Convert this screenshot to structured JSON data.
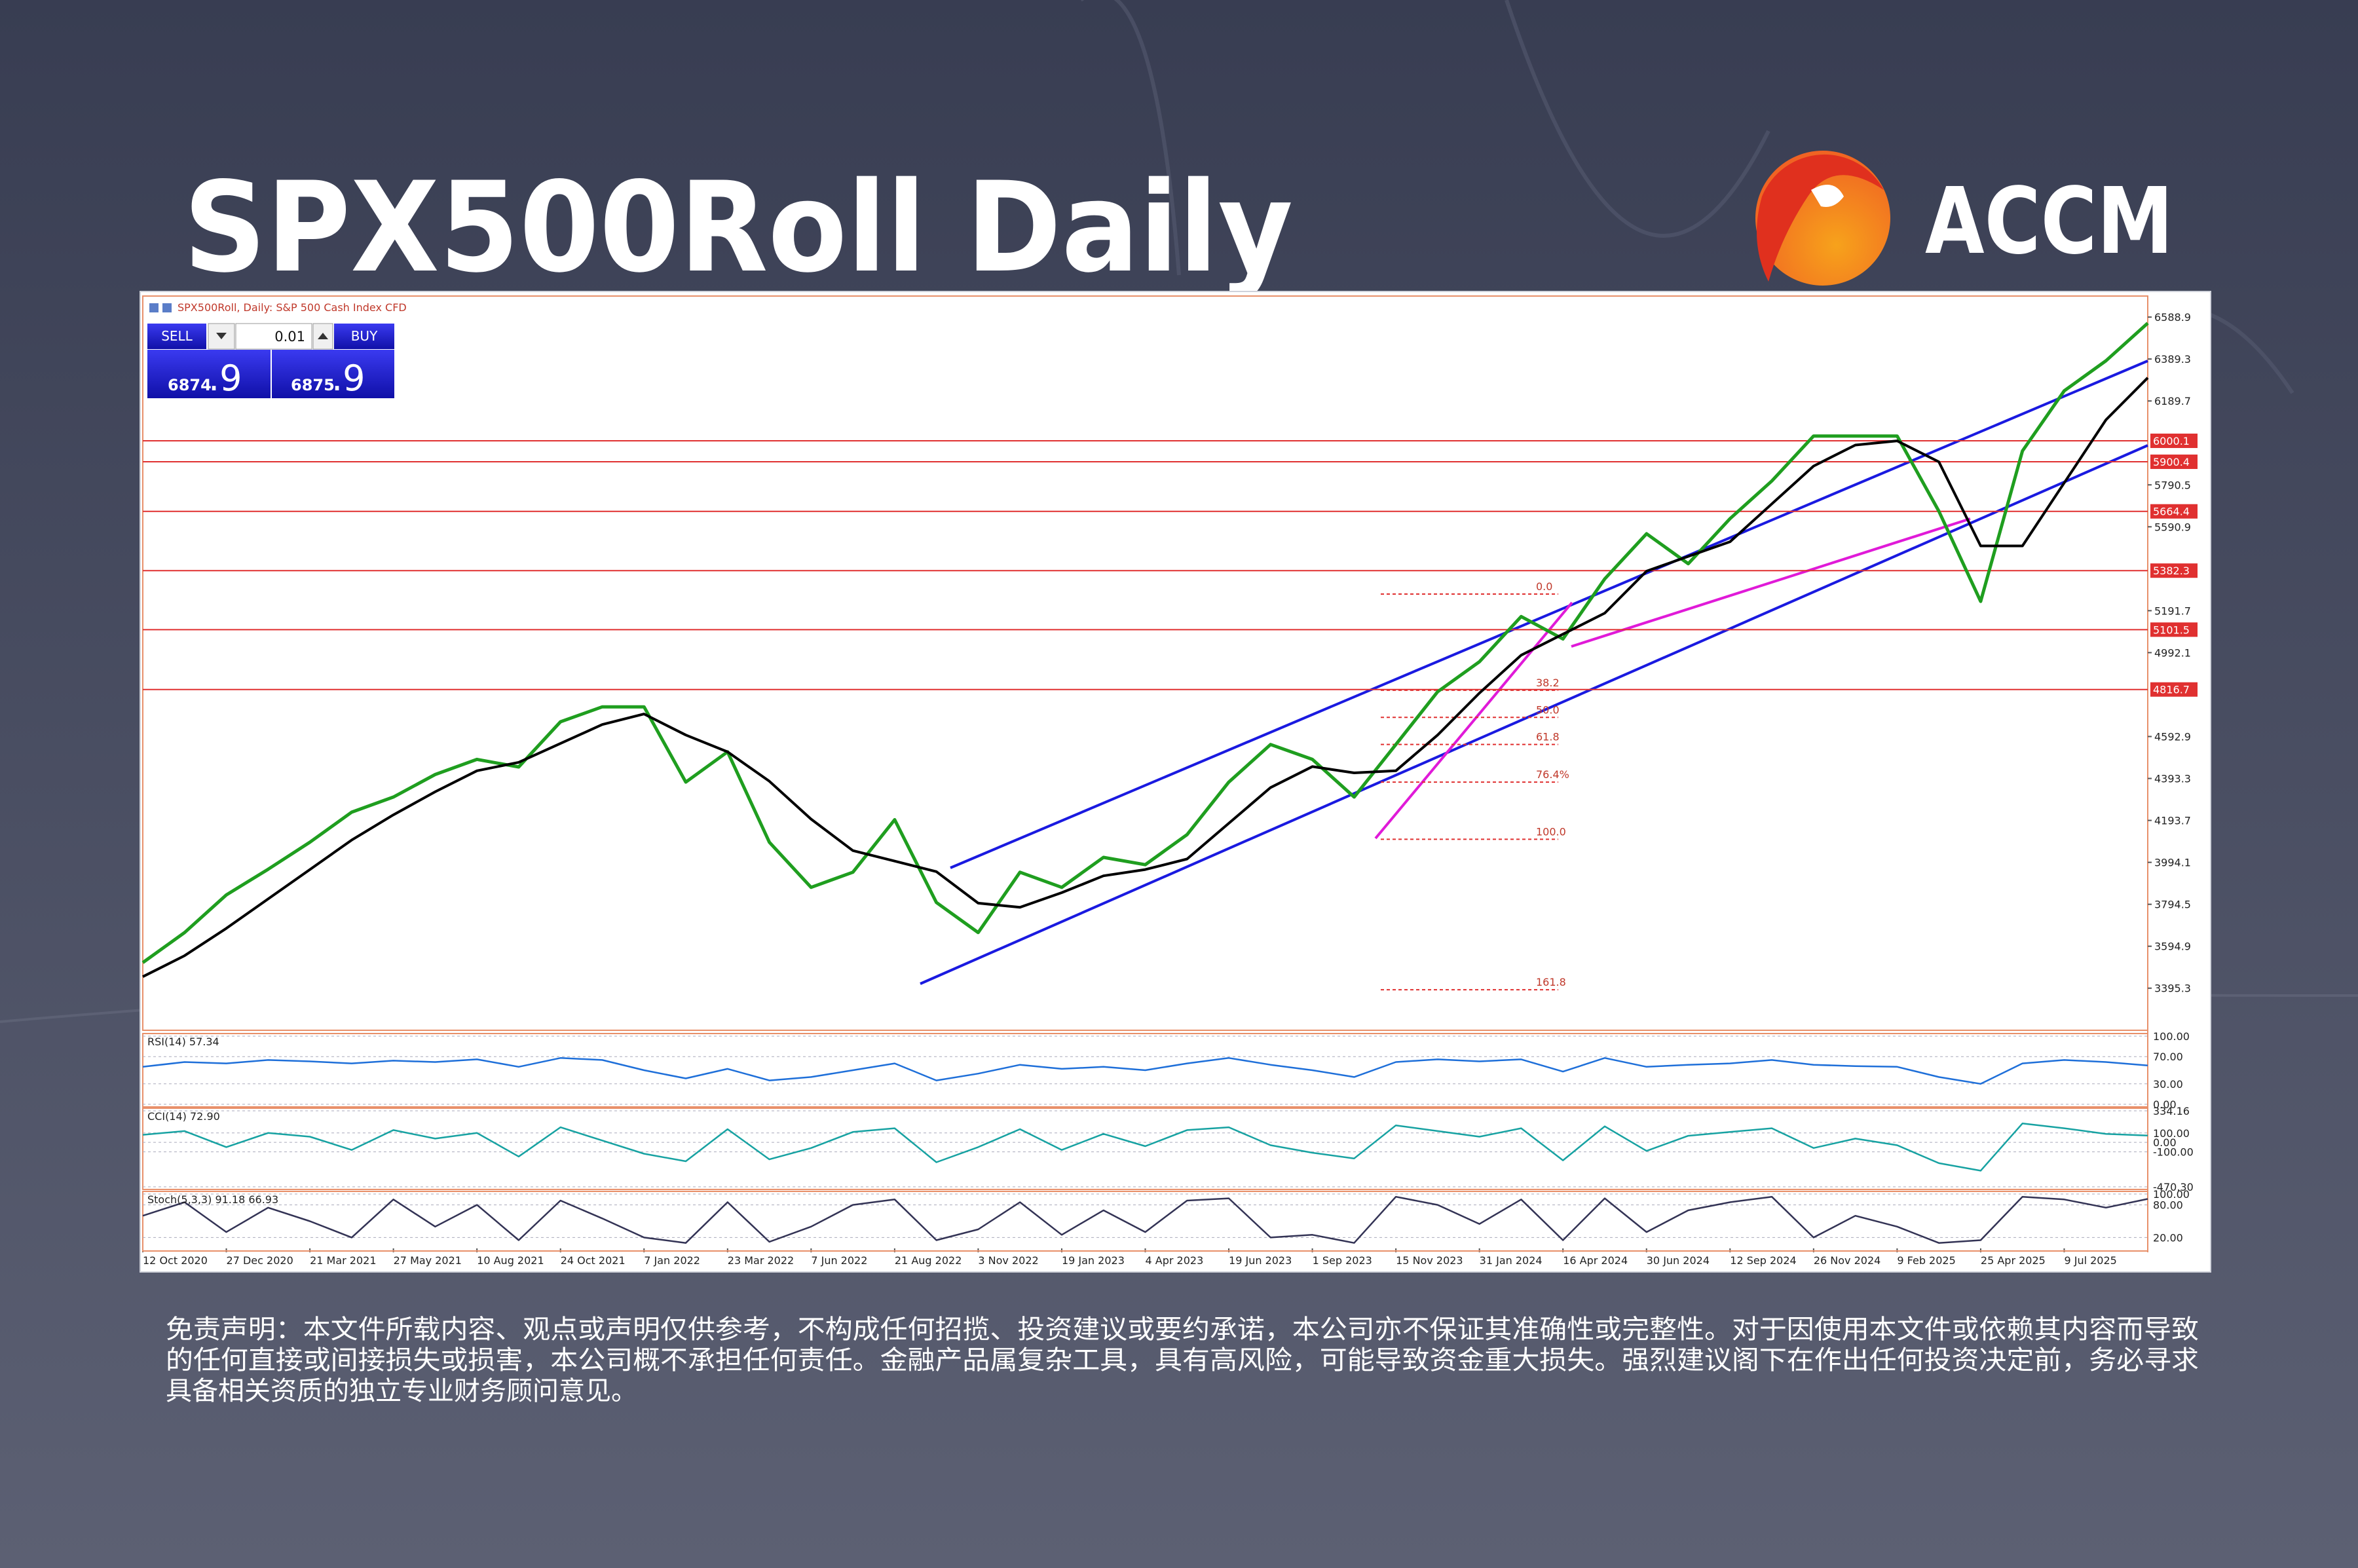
{
  "header": {
    "title": "SPX500Roll Daily",
    "brand": "ACCM"
  },
  "chart_data": {
    "type": "line",
    "symbol_label": "SPX500Roll, Daily:  S&P 500 Cash Index CFD",
    "trade_panel": {
      "sell": "SELL",
      "lot": "0.01",
      "buy": "BUY",
      "bid_big": "6874",
      "bid_small": ".9",
      "ask_big": "6875",
      "ask_small": ".9"
    },
    "categories": [
      "12 Oct 2020",
      null,
      "27 Dec 2020",
      null,
      "21 Mar 2021",
      null,
      "27 May 2021",
      null,
      "10 Aug 2021",
      null,
      "24 Oct 2021",
      null,
      "7 Jan 2022",
      null,
      "23 Mar 2022",
      null,
      "7 Jun 2022",
      null,
      "21 Aug 2022",
      null,
      "3 Nov 2022",
      null,
      "19 Jan 2023",
      null,
      "4 Apr 2023",
      null,
      "19 Jun 2023",
      null,
      "1 Sep 2023",
      null,
      "15 Nov 2023",
      null,
      "31 Jan 2024",
      null,
      "16 Apr 2024",
      null,
      "30 Jun 2024",
      null,
      "12 Sep 2024",
      null,
      "26 Nov 2024",
      null,
      "9 Feb 2025",
      null,
      "25 Apr 2025",
      null,
      "9 Jul 2025",
      null,
      null
    ],
    "series": [
      {
        "color": "#1f9e1f",
        "values": [
          3517,
          3660,
          3839,
          3961,
          4090,
          4233,
          4305,
          4412,
          4484,
          4448,
          4663,
          4734,
          4734,
          4376,
          4520,
          4090,
          3875,
          3947,
          4197,
          3803,
          3660,
          3947,
          3875,
          4018,
          3983,
          4126,
          4376,
          4555,
          4484,
          4305,
          4555,
          4806,
          4949,
          5164,
          5057,
          5343,
          5558,
          5415,
          5630,
          5809,
          6023,
          6023,
          6023,
          5665,
          5236,
          5952,
          6238,
          6381,
          6560
        ]
      },
      {
        "color": "#000000",
        "values": [
          3450,
          3550,
          3680,
          3820,
          3960,
          4100,
          4220,
          4330,
          4430,
          4470,
          4560,
          4650,
          4700,
          4600,
          4520,
          4380,
          4200,
          4050,
          4000,
          3950,
          3800,
          3780,
          3850,
          3930,
          3960,
          4010,
          4180,
          4350,
          4450,
          4420,
          4430,
          4600,
          4800,
          4980,
          5080,
          5180,
          5380,
          5450,
          5520,
          5700,
          5880,
          5980,
          6000,
          5900,
          5500,
          5500,
          5800,
          6100,
          6300
        ]
      }
    ],
    "ylim": [
      3195,
      6689
    ],
    "yticks": [
      3395.3,
      3594.9,
      3794.5,
      3994.1,
      4193.7,
      4393.3,
      4592.9,
      4992.1,
      5191.7,
      5590.9,
      5790.5,
      6189.7,
      6389.3,
      6588.9
    ],
    "levels": {
      "color": "#e03030",
      "values": [
        6000.1,
        5900.4,
        5664.4,
        5382.3,
        5101.5,
        4816.7
      ]
    },
    "fib_levels": [
      {
        "text": "0.0",
        "price": 5271
      },
      {
        "text": "38.2",
        "price": 4813
      },
      {
        "text": "50.0",
        "price": 4684
      },
      {
        "text": "61.8",
        "price": 4555
      },
      {
        "text": "76.4%",
        "price": 4376
      },
      {
        "text": "100.0",
        "price": 4104
      },
      {
        "text": "161.8",
        "price": 3388
      }
    ],
    "indicators": [
      {
        "type": "line",
        "label": "RSI(14) 57.34",
        "color": "#1e6fd9",
        "ylim": [
          0,
          100
        ],
        "yticks": [
          {
            "value": 100,
            "label": "100.00"
          },
          {
            "value": 70,
            "label": "70.00"
          },
          {
            "value": 30,
            "label": "30.00"
          },
          {
            "value": 0,
            "label": "0.00"
          }
        ],
        "values": [
          55,
          62,
          60,
          65,
          63,
          60,
          64,
          62,
          66,
          55,
          68,
          65,
          50,
          38,
          52,
          35,
          40,
          50,
          60,
          35,
          45,
          58,
          52,
          55,
          50,
          60,
          68,
          58,
          50,
          40,
          62,
          66,
          63,
          66,
          48,
          68,
          55,
          58,
          60,
          65,
          58,
          56,
          55,
          40,
          30,
          60,
          65,
          62,
          57
        ]
      },
      {
        "type": "line",
        "label": "CCI(14) 72.90",
        "color": "#17a2a2",
        "ylim": [
          -470.3,
          334.16
        ],
        "yticks": [
          {
            "value": 334.16,
            "label": "334.16"
          },
          {
            "value": 100,
            "label": "100.00"
          },
          {
            "value": 0,
            "label": "0.00"
          },
          {
            "value": -100,
            "label": "-100.00"
          },
          {
            "value": -470.3,
            "label": "-470.30"
          }
        ],
        "values": [
          80,
          120,
          -50,
          100,
          60,
          -80,
          130,
          40,
          100,
          -150,
          160,
          20,
          -120,
          -200,
          140,
          -180,
          -60,
          110,
          150,
          -210,
          -50,
          140,
          -80,
          90,
          -40,
          130,
          160,
          -30,
          -110,
          -170,
          180,
          120,
          60,
          150,
          -190,
          170,
          -90,
          70,
          110,
          150,
          -60,
          40,
          -30,
          -220,
          -300,
          200,
          150,
          90,
          72.9
        ]
      },
      {
        "type": "line",
        "label": "Stoch(5,3,3) 91.18 66.93",
        "color": "#333355",
        "ylim": [
          0,
          100
        ],
        "yticks": [
          {
            "value": 100,
            "label": "100.00"
          },
          {
            "value": 80,
            "label": "80.00"
          },
          {
            "value": 20,
            "label": "20.00"
          }
        ],
        "values": [
          60,
          85,
          30,
          75,
          50,
          20,
          90,
          40,
          80,
          15,
          88,
          55,
          20,
          10,
          85,
          12,
          40,
          80,
          90,
          15,
          35,
          85,
          25,
          70,
          30,
          88,
          92,
          20,
          25,
          10,
          95,
          80,
          45,
          90,
          15,
          92,
          30,
          70,
          85,
          95,
          20,
          60,
          40,
          10,
          15,
          95,
          90,
          75,
          91
        ]
      }
    ]
  },
  "disclaimer": [
    "免责声明：本文件所载内容、观点或声明仅供参考，不构成任何招揽、投资建议或要约承诺，本公司亦不保证其准确性或完整性。对于因使用本文件或依赖其内容而导致",
    "的任何直接或间接损失或损害，本公司概不承担任何责任。金融产品属复杂工具，具有高风险，可能导致资金重大损失。强烈建议阁下在作出任何投资决定前，务必寻求",
    "具备相关资质的独立专业财务顾问意见。"
  ]
}
